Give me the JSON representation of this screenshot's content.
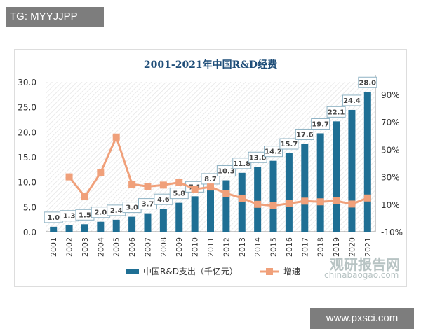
{
  "watermarks": {
    "tag": "TG: MYYJJPP",
    "site": "www.pxsci.com",
    "brand": "观研报告网",
    "brand_url": "chinabaogao.com"
  },
  "chart_data": {
    "type": "bar+line",
    "title": "2001-2021年中国R&D经费",
    "categories": [
      "2001",
      "2002",
      "2003",
      "2004",
      "2005",
      "2006",
      "2007",
      "2008",
      "2009",
      "2010",
      "2011",
      "2012",
      "2013",
      "2014",
      "2015",
      "2016",
      "2017",
      "2018",
      "2019",
      "2020",
      "2021"
    ],
    "series": [
      {
        "name": "中国R&D支出（千亿元）",
        "type": "bar",
        "axis": "left",
        "color": "#1f6f94",
        "values": [
          1.0,
          1.3,
          1.5,
          2.0,
          2.4,
          3.0,
          3.7,
          4.6,
          5.8,
          7.1,
          8.7,
          10.3,
          11.8,
          13.0,
          14.2,
          15.7,
          17.6,
          19.7,
          22.1,
          24.4,
          28.0
        ]
      },
      {
        "name": "增速",
        "type": "line",
        "axis": "right",
        "color": "#f0a07a",
        "values": [
          null,
          30,
          15.5,
          33,
          59,
          24.7,
          23,
          24,
          26,
          21,
          22.6,
          18,
          14.5,
          10,
          9,
          10.6,
          12.3,
          11.8,
          12.5,
          10.2,
          14.6
        ]
      }
    ],
    "left_axis": {
      "ticks": [
        "0.0",
        "5.0",
        "10.0",
        "15.0",
        "20.0",
        "25.0",
        "30.0"
      ],
      "range": [
        0,
        30
      ]
    },
    "right_axis": {
      "ticks": [
        "-10%",
        "10%",
        "30%",
        "50%",
        "70%",
        "90%"
      ],
      "range": [
        -10,
        100
      ]
    },
    "legend_placement": "bottom"
  }
}
